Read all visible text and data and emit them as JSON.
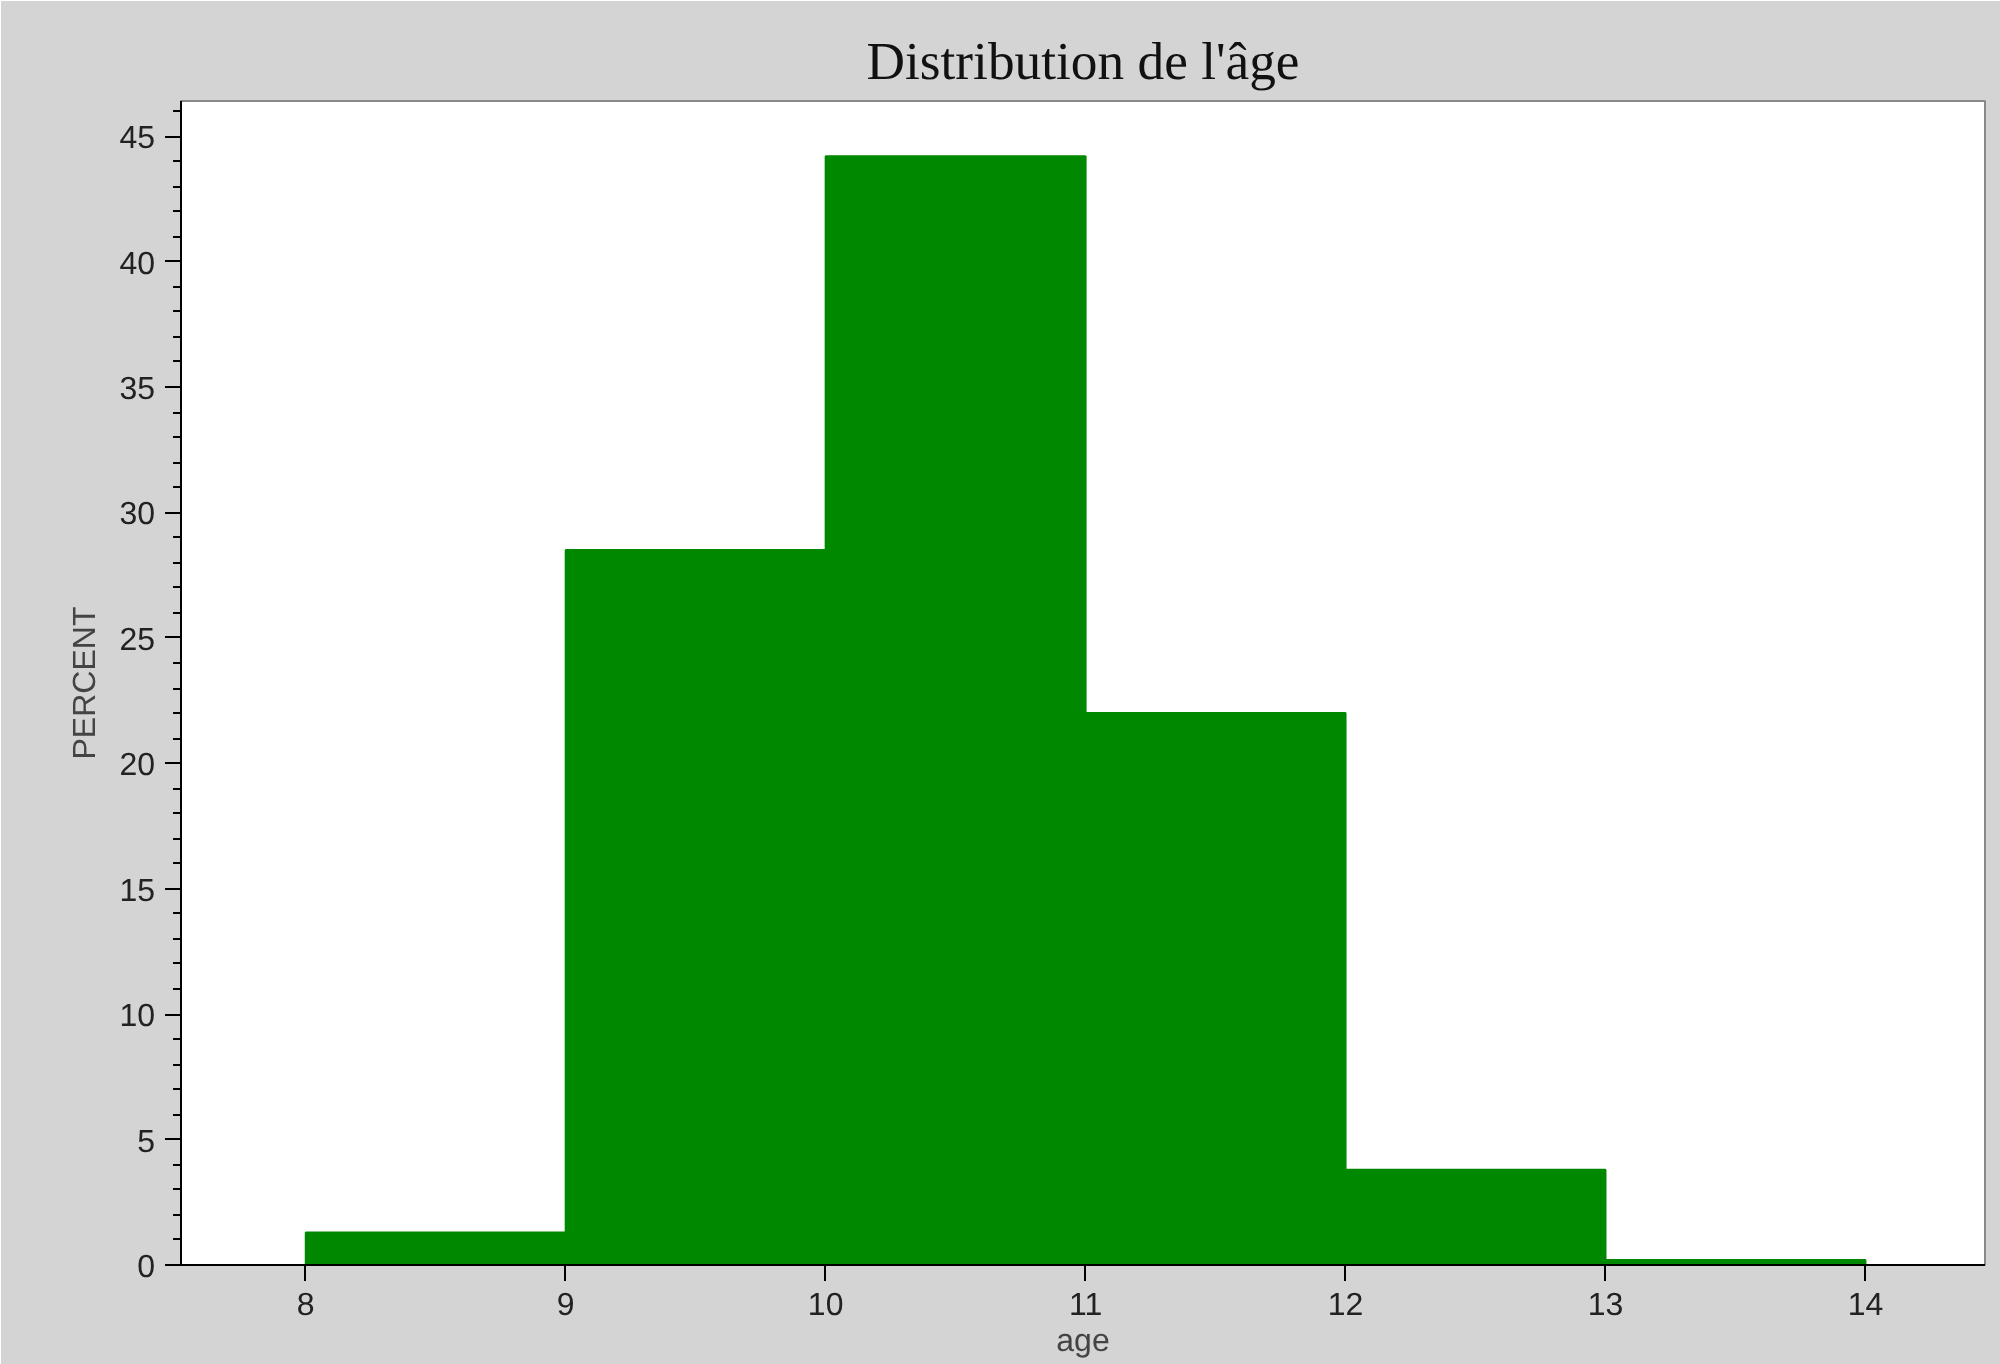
{
  "chart_data": {
    "type": "histogram",
    "title": "Distribution de l'âge",
    "xlabel": "age",
    "ylabel": "PERCENT",
    "bins": [
      8,
      9,
      10,
      11,
      12,
      13,
      14
    ],
    "values": [
      1.3,
      28.5,
      44.2,
      22.0,
      3.8,
      0.2
    ],
    "color": "#008800",
    "xlim": [
      7.52,
      14.46
    ],
    "xticks": [
      8,
      9,
      10,
      11,
      12,
      13,
      14
    ],
    "ylim": [
      0,
      46.4
    ],
    "yticks": [
      0,
      5,
      10,
      15,
      20,
      25,
      30,
      35,
      40,
      45
    ],
    "grid": false
  }
}
